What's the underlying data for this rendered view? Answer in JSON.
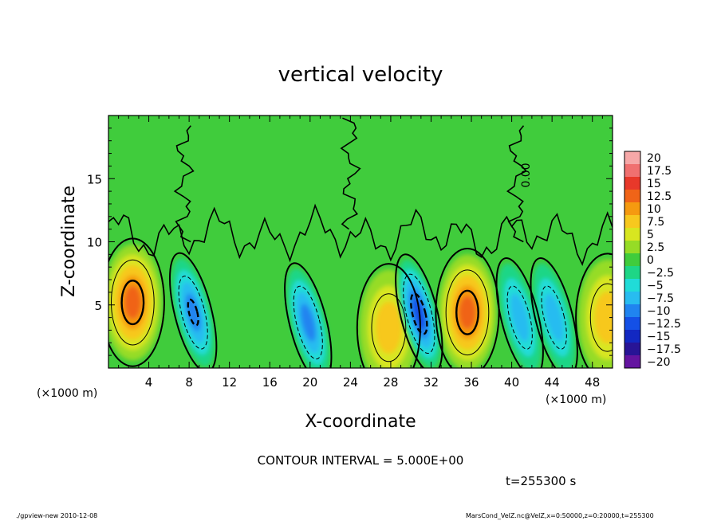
{
  "chart_data": {
    "type": "heatmap",
    "title": "vertical velocity",
    "xlabel": "X-coordinate",
    "ylabel": "Z-coordinate",
    "x_unit_label": "(×1000 m)",
    "xlim": [
      0,
      50
    ],
    "ylim": [
      0,
      20
    ],
    "x_ticks": [
      "4",
      "8",
      "12",
      "16",
      "20",
      "24",
      "28",
      "32",
      "36",
      "40",
      "44",
      "48"
    ],
    "y_ticks": [
      "5",
      "10",
      "15"
    ],
    "colorbar": {
      "labels": [
        "20",
        "17.5",
        "15",
        "12.5",
        "10",
        "7.5",
        "5",
        "2.5",
        "0",
        "−2.5",
        "−5",
        "−7.5",
        "−10",
        "−12.5",
        "−15",
        "−17.5",
        "−20"
      ],
      "colors": [
        "#f6a8a8",
        "#f07070",
        "#e8382a",
        "#f06418",
        "#f59a10",
        "#f7c81e",
        "#d8e620",
        "#96dc26",
        "#40cc3c",
        "#1ed686",
        "#20dcd8",
        "#28bcf0",
        "#2084f0",
        "#1450e6",
        "#1228c2",
        "#281496",
        "#6414a0"
      ]
    },
    "contour_label": "0.00",
    "updrafts": [
      {
        "x": 2.4,
        "z": 5.2,
        "peak": 12.0
      },
      {
        "x": 27.8,
        "z": 3.2,
        "peak": 7.0
      },
      {
        "x": 35.6,
        "z": 4.4,
        "peak": 12.5
      },
      {
        "x": 49.5,
        "z": 4.0,
        "peak": 6.0
      }
    ],
    "downdrafts": [
      {
        "x": 8.4,
        "z": 4.4,
        "peak": -10.0
      },
      {
        "x": 19.8,
        "z": 3.6,
        "peak": -8.5
      },
      {
        "x": 30.8,
        "z": 4.3,
        "peak": -11.0
      },
      {
        "x": 40.8,
        "z": 4.0,
        "peak": -6.0
      },
      {
        "x": 44.2,
        "z": 4.0,
        "peak": -6.5
      }
    ]
  },
  "contour_interval": "CONTOUR INTERVAL = 5.000E+00",
  "time_label": "t=255300 s",
  "footer_left": "./gpview-new  2010-12-08",
  "footer_right": "MarsCond_VelZ.nc@VelZ,x=0:50000,z=0:20000,t=255300"
}
